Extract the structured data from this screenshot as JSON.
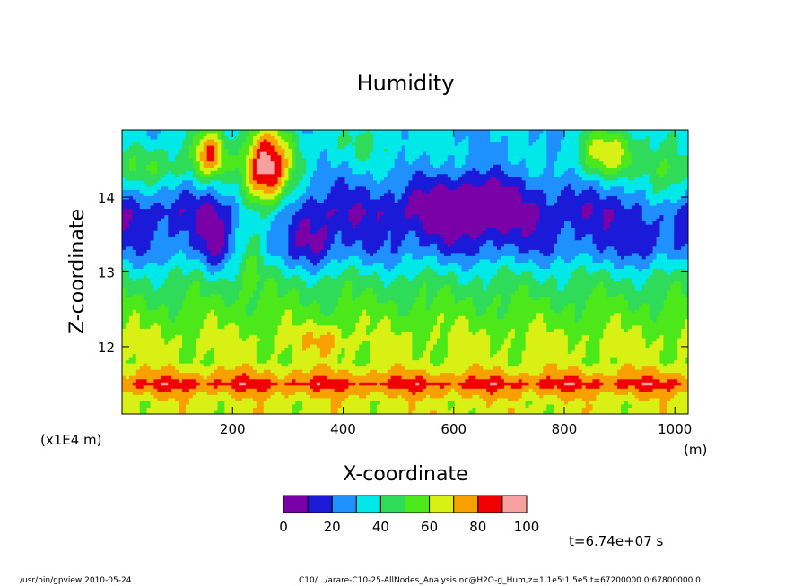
{
  "chart_data": {
    "type": "heatmap",
    "title": "Humidity",
    "xlabel": "X-coordinate",
    "ylabel": "Z-coordinate",
    "x_unit": "(m)",
    "y_unit": "(x1E4 m)",
    "xlim": [
      0,
      1024
    ],
    "ylim": [
      11.1,
      14.9
    ],
    "x_ticks": [
      200,
      400,
      600,
      800,
      1000
    ],
    "y_ticks": [
      12,
      13,
      14
    ],
    "colorbar": {
      "levels": [
        0,
        10,
        20,
        30,
        40,
        50,
        60,
        70,
        80,
        90,
        100
      ],
      "tick_labels": [
        "0",
        "20",
        "40",
        "60",
        "80",
        "100"
      ],
      "colors": [
        "#7a00a8",
        "#1a1ad8",
        "#1e90ff",
        "#00e8e8",
        "#2edc5a",
        "#4ce81a",
        "#d8f014",
        "#f7a000",
        "#f00000",
        "#f7a0a0"
      ]
    },
    "time_label": "t=6.74e+07 s",
    "levels_summary": [
      {
        "z": 11.25,
        "value": 65
      },
      {
        "z": 11.4,
        "value": 75
      },
      {
        "z": 11.5,
        "value": 85
      },
      {
        "z": 11.6,
        "value": 75
      },
      {
        "z": 11.8,
        "value": 62
      },
      {
        "z": 12.1,
        "value": 62
      },
      {
        "z": 12.5,
        "value": 53
      },
      {
        "z": 12.9,
        "value": 43
      },
      {
        "z": 13.3,
        "value": 22
      },
      {
        "z": 13.8,
        "value": 12
      },
      {
        "z": 14.4,
        "value": 30
      }
    ]
  },
  "footer": {
    "left": "/usr/bin/gpview   2010-05-24",
    "right": "C10/.../arare-C10-25-AllNodes_Analysis.nc@H2O-g_Hum,z=1.1e5:1.5e5,t=67200000.0:67800000.0"
  }
}
